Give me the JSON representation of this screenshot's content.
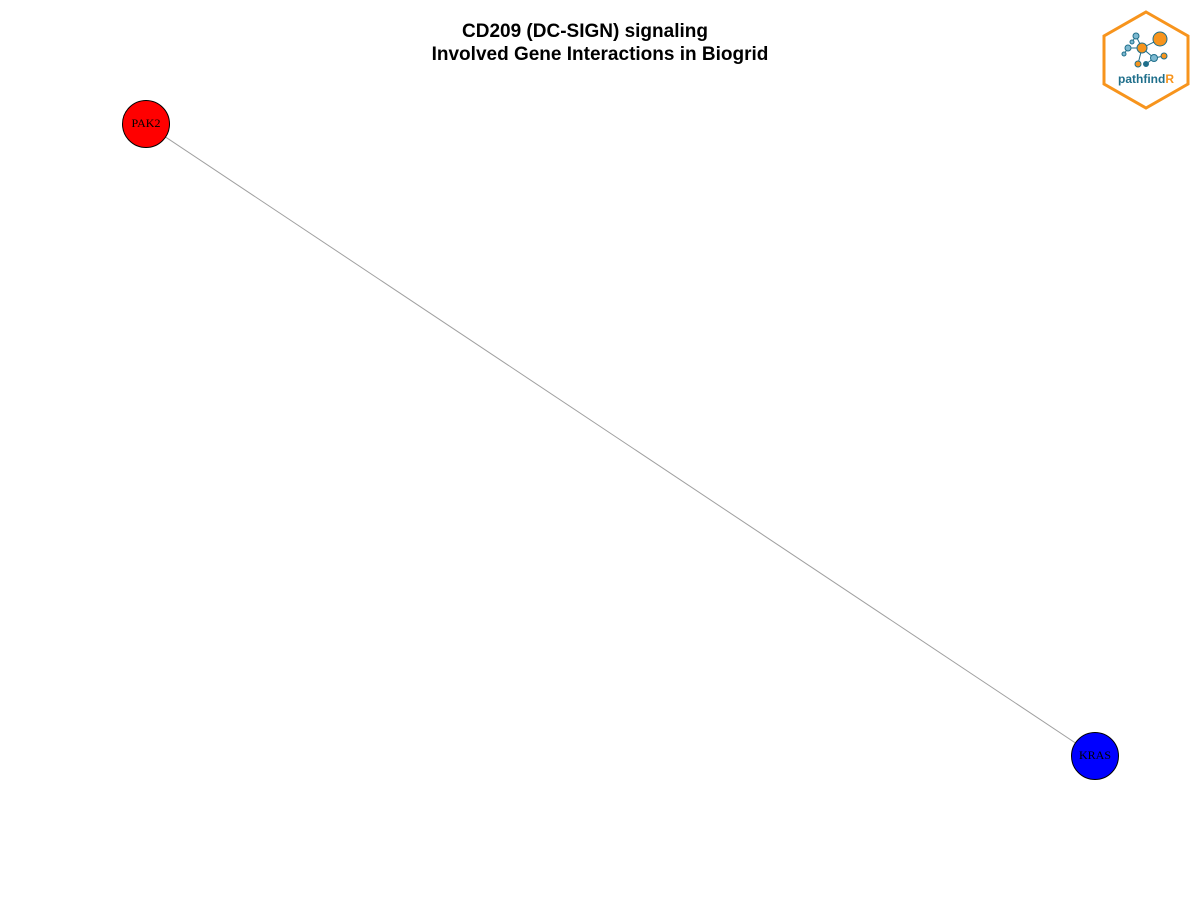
{
  "title": {
    "line1": "CD209 (DC-SIGN) signaling",
    "line2": "Involved Gene Interactions in Biogrid"
  },
  "network": {
    "nodes": [
      {
        "id": "PAK2",
        "label": "PAK2",
        "color": "#ff0000"
      },
      {
        "id": "KRAS",
        "label": "KRAS",
        "color": "#0000ff"
      }
    ],
    "edges": [
      {
        "source": "PAK2",
        "target": "KRAS",
        "color": "#a0a0a0"
      }
    ]
  },
  "logo": {
    "text_main": "pathfind",
    "text_accent": "R",
    "border_color": "#f7941d",
    "text_color": "#1f6f8b",
    "accent_color": "#f7941d"
  }
}
